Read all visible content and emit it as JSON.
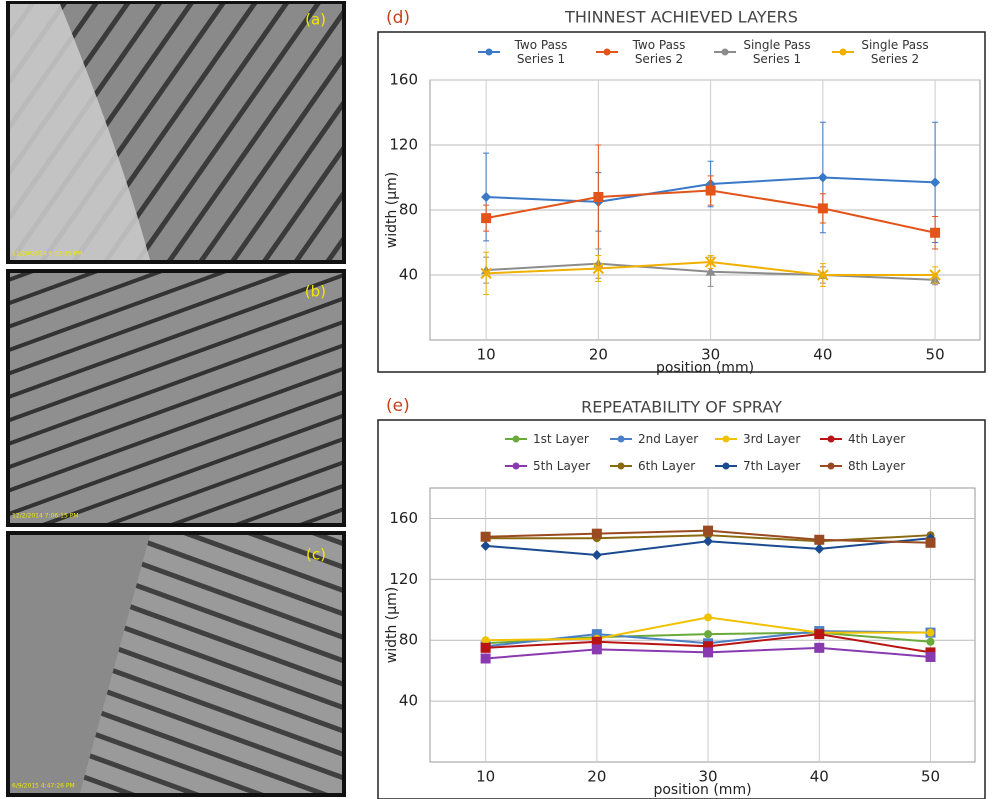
{
  "images": [
    {
      "label": "(a)",
      "timestamp": "11/20/2014 6:02:35 PM"
    },
    {
      "label": "(b)",
      "timestamp": "12/2/2014 7:06:15 PM"
    },
    {
      "label": "(c)",
      "timestamp": "6/9/2015 4:47:26 PM"
    }
  ],
  "chart_data": [
    {
      "type": "line",
      "panel": "(d)",
      "title": "THINNEST ACHIEVED LAYERS",
      "xlabel": "position (mm)",
      "ylabel": "width (μm)",
      "x": [
        10,
        20,
        30,
        40,
        50
      ],
      "xlim": [
        5,
        54
      ],
      "xticks": [
        10,
        20,
        30,
        40,
        50
      ],
      "ylim": [
        0,
        160
      ],
      "yticks": [
        40,
        80,
        120,
        160
      ],
      "grid": true,
      "series": [
        {
          "name": "Two Pass Series 1",
          "color": "#3a78c8",
          "marker": "diamond",
          "values": [
            88,
            85,
            96,
            100,
            97
          ],
          "errors": [
            27,
            18,
            14,
            34,
            37
          ]
        },
        {
          "name": "Two Pass Series 2",
          "color": "#e2541a",
          "marker": "square",
          "values": [
            75,
            88,
            92,
            81,
            66
          ],
          "errors": [
            8,
            32,
            9,
            9,
            10
          ]
        },
        {
          "name": "Single Pass Series 1",
          "color": "#8c8c8c",
          "marker": "triangle",
          "values": [
            43,
            47,
            42,
            40,
            37
          ],
          "errors": [
            8,
            9,
            9,
            5,
            3
          ]
        },
        {
          "name": "Single Pass Series 2",
          "color": "#f0b000",
          "marker": "x",
          "values": [
            41,
            44,
            48,
            40,
            40
          ],
          "errors": [
            13,
            8,
            4,
            7,
            5
          ]
        }
      ]
    },
    {
      "type": "line",
      "panel": "(e)",
      "title": "REPEATABILITY OF SPRAY",
      "xlabel": "position (mm)",
      "ylabel": "width (μm)",
      "x": [
        10,
        20,
        30,
        40,
        50
      ],
      "xlim": [
        5,
        54
      ],
      "xticks": [
        10,
        20,
        30,
        40,
        50
      ],
      "ylim": [
        0,
        180
      ],
      "yticks": [
        40,
        80,
        120,
        160
      ],
      "grid": true,
      "series": [
        {
          "name": "1st Layer",
          "color": "#6aaa3a",
          "marker": "circle",
          "values": [
            78,
            82,
            84,
            85,
            79
          ]
        },
        {
          "name": "2nd Layer",
          "color": "#4a7fc9",
          "marker": "square",
          "values": [
            76,
            84,
            78,
            86,
            85
          ]
        },
        {
          "name": "3rd Layer",
          "color": "#f2c200",
          "marker": "circle",
          "values": [
            80,
            81,
            95,
            85,
            85
          ]
        },
        {
          "name": "4th Layer",
          "color": "#b81414",
          "marker": "square",
          "values": [
            75,
            79,
            76,
            84,
            72
          ]
        },
        {
          "name": "5th Layer",
          "color": "#8a3ab0",
          "marker": "square",
          "values": [
            68,
            74,
            72,
            75,
            69
          ]
        },
        {
          "name": "6th Layer",
          "color": "#8a6a10",
          "marker": "circle",
          "values": [
            147,
            147,
            149,
            145,
            149
          ]
        },
        {
          "name": "7th Layer",
          "color": "#1a4a90",
          "marker": "diamond",
          "values": [
            142,
            136,
            145,
            140,
            147
          ]
        },
        {
          "name": "8th Layer",
          "color": "#9a4a20",
          "marker": "square",
          "values": [
            148,
            150,
            152,
            146,
            144
          ]
        }
      ]
    }
  ]
}
